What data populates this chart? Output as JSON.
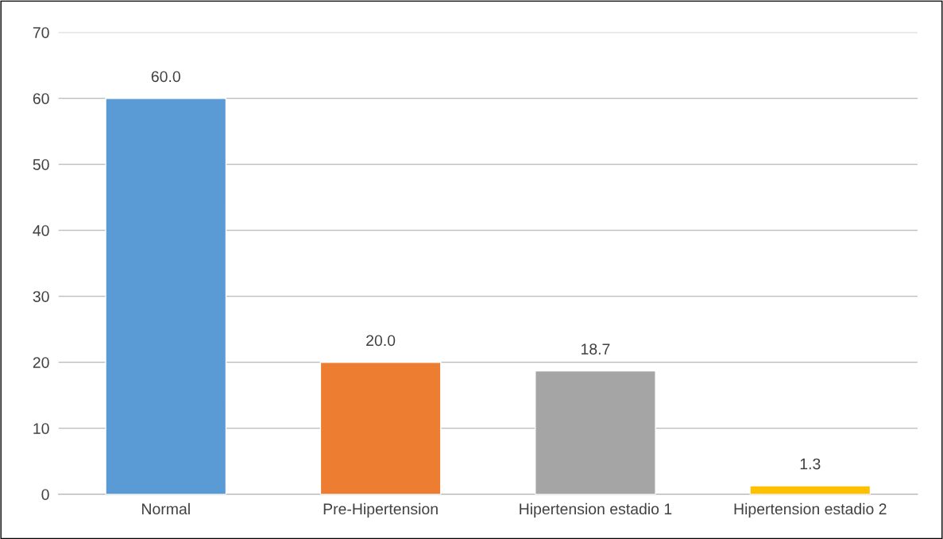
{
  "chart_data": {
    "type": "bar",
    "categories": [
      "Normal",
      "Pre-Hipertension",
      "Hipertension estadio 1",
      "Hipertension estadio 2"
    ],
    "values": [
      60.0,
      20.0,
      18.7,
      1.3
    ],
    "colors": [
      "#5b9bd5",
      "#ed7d31",
      "#a5a5a5",
      "#ffc000"
    ],
    "value_labels": [
      "60.0",
      "20.0",
      "18.7",
      "1.3"
    ],
    "ylim": [
      0,
      70
    ],
    "yticks": [
      0,
      10,
      20,
      30,
      40,
      50,
      60,
      70
    ],
    "grid": "y"
  }
}
